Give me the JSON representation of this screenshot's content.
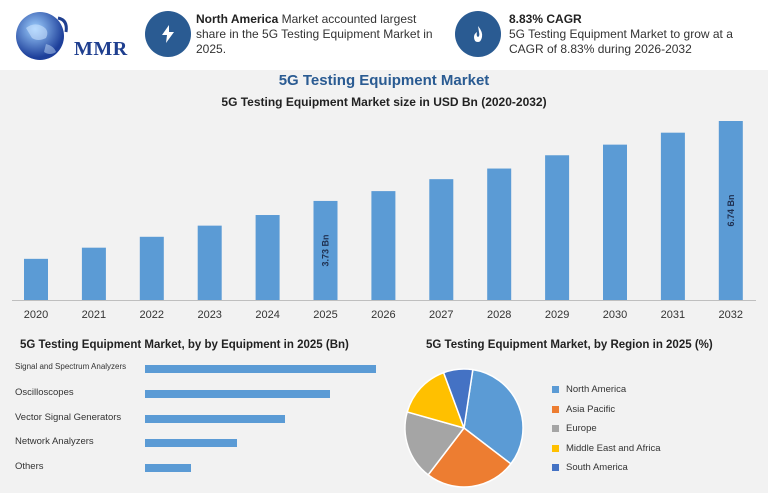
{
  "header": {
    "logo_text": "MMR",
    "highlights": [
      {
        "icon": "bolt-icon",
        "bold": "North America",
        "text": " Market accounted largest share in the 5G Testing Equipment Market in 2025."
      },
      {
        "icon": "flame-icon",
        "bold": "8.83% CAGR",
        "text": "5G Testing Equipment Market to grow at a CAGR of 8.83% during 2026-2032"
      }
    ]
  },
  "title": "5G Testing Equipment Market",
  "chart_data": [
    {
      "type": "bar",
      "title": "5G Testing Equipment Market size in USD Bn (2020-2032)",
      "categories": [
        "2020",
        "2021",
        "2022",
        "2023",
        "2024",
        "2025",
        "2026",
        "2027",
        "2028",
        "2029",
        "2030",
        "2031",
        "2032"
      ],
      "values": [
        1.55,
        1.97,
        2.38,
        2.8,
        3.2,
        3.73,
        4.1,
        4.55,
        4.95,
        5.45,
        5.85,
        6.3,
        6.74
      ],
      "data_labels": {
        "2025": "3.73 Bn",
        "2032": "6.74 Bn"
      },
      "ylim": [
        0,
        6.74
      ],
      "color": "#5b9bd5"
    },
    {
      "type": "bar",
      "orientation": "horizontal",
      "title": "5G Testing Equipment Market, by by Equipment in 2025 (Bn)",
      "categories": [
        "Signal and Spectrum Analyzers",
        "Oscilloscopes",
        "Vector Signal Generators",
        "Network Analyzers",
        "Others"
      ],
      "values": [
        1.6,
        1.28,
        0.97,
        0.64,
        0.32
      ],
      "xlim": [
        0,
        1.6
      ],
      "color": "#5b9bd5"
    },
    {
      "type": "pie",
      "title": "5G Testing Equipment Market, by Region in 2025 (%)",
      "categories": [
        "North America",
        "Asia Pacific",
        "Europe",
        "Middle East and Africa",
        "South America"
      ],
      "values": [
        33,
        25,
        19,
        15,
        8
      ],
      "colors": [
        "#5b9bd5",
        "#ed7d31",
        "#a5a5a5",
        "#ffc000",
        "#4472c4"
      ]
    }
  ]
}
